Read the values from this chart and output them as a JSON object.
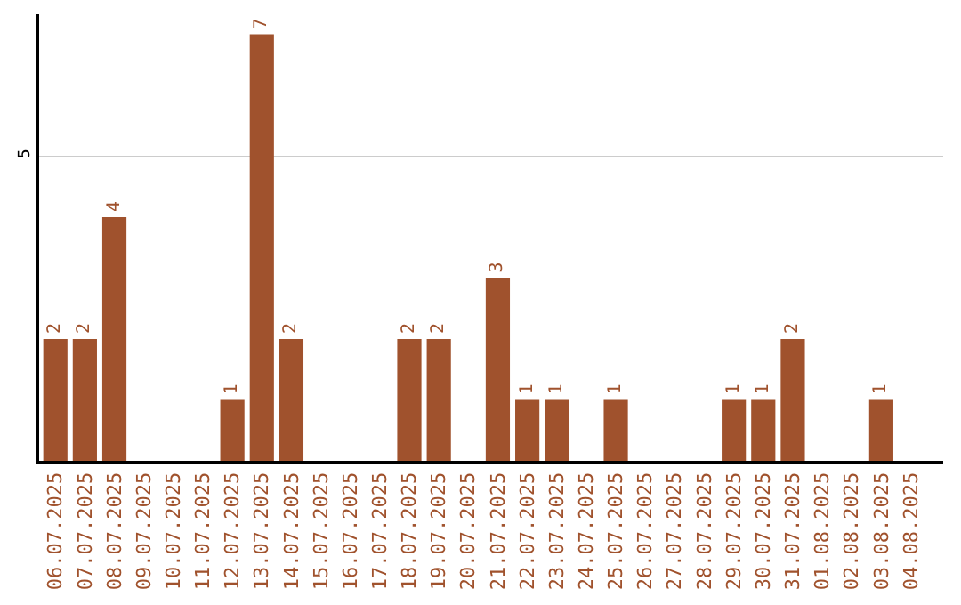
{
  "chart_data": {
    "type": "bar",
    "categories": [
      "06.07.2025",
      "07.07.2025",
      "08.07.2025",
      "09.07.2025",
      "10.07.2025",
      "11.07.2025",
      "12.07.2025",
      "13.07.2025",
      "14.07.2025",
      "15.07.2025",
      "16.07.2025",
      "17.07.2025",
      "18.07.2025",
      "19.07.2025",
      "20.07.2025",
      "21.07.2025",
      "22.07.2025",
      "23.07.2025",
      "24.07.2025",
      "25.07.2025",
      "26.07.2025",
      "27.07.2025",
      "28.07.2025",
      "29.07.2025",
      "30.07.2025",
      "31.07.2025",
      "01.08.2025",
      "02.08.2025",
      "03.08.2025",
      "04.08.2025"
    ],
    "values": [
      2,
      2,
      4,
      0,
      0,
      0,
      1,
      7,
      2,
      0,
      0,
      0,
      2,
      2,
      0,
      3,
      1,
      1,
      0,
      1,
      0,
      0,
      0,
      1,
      1,
      2,
      0,
      0,
      1,
      0
    ],
    "value_labels": [
      "2",
      "2",
      "4",
      null,
      null,
      null,
      "1",
      "7",
      "2",
      null,
      null,
      null,
      "2",
      "2",
      null,
      "3",
      "1",
      "1",
      null,
      "1",
      null,
      null,
      null,
      "1",
      "1",
      "2",
      null,
      null,
      "1",
      null
    ],
    "color": "#a0522d",
    "ylim": [
      0,
      7.33
    ],
    "yticks": [
      5
    ],
    "grid": "y",
    "legend": false
  }
}
